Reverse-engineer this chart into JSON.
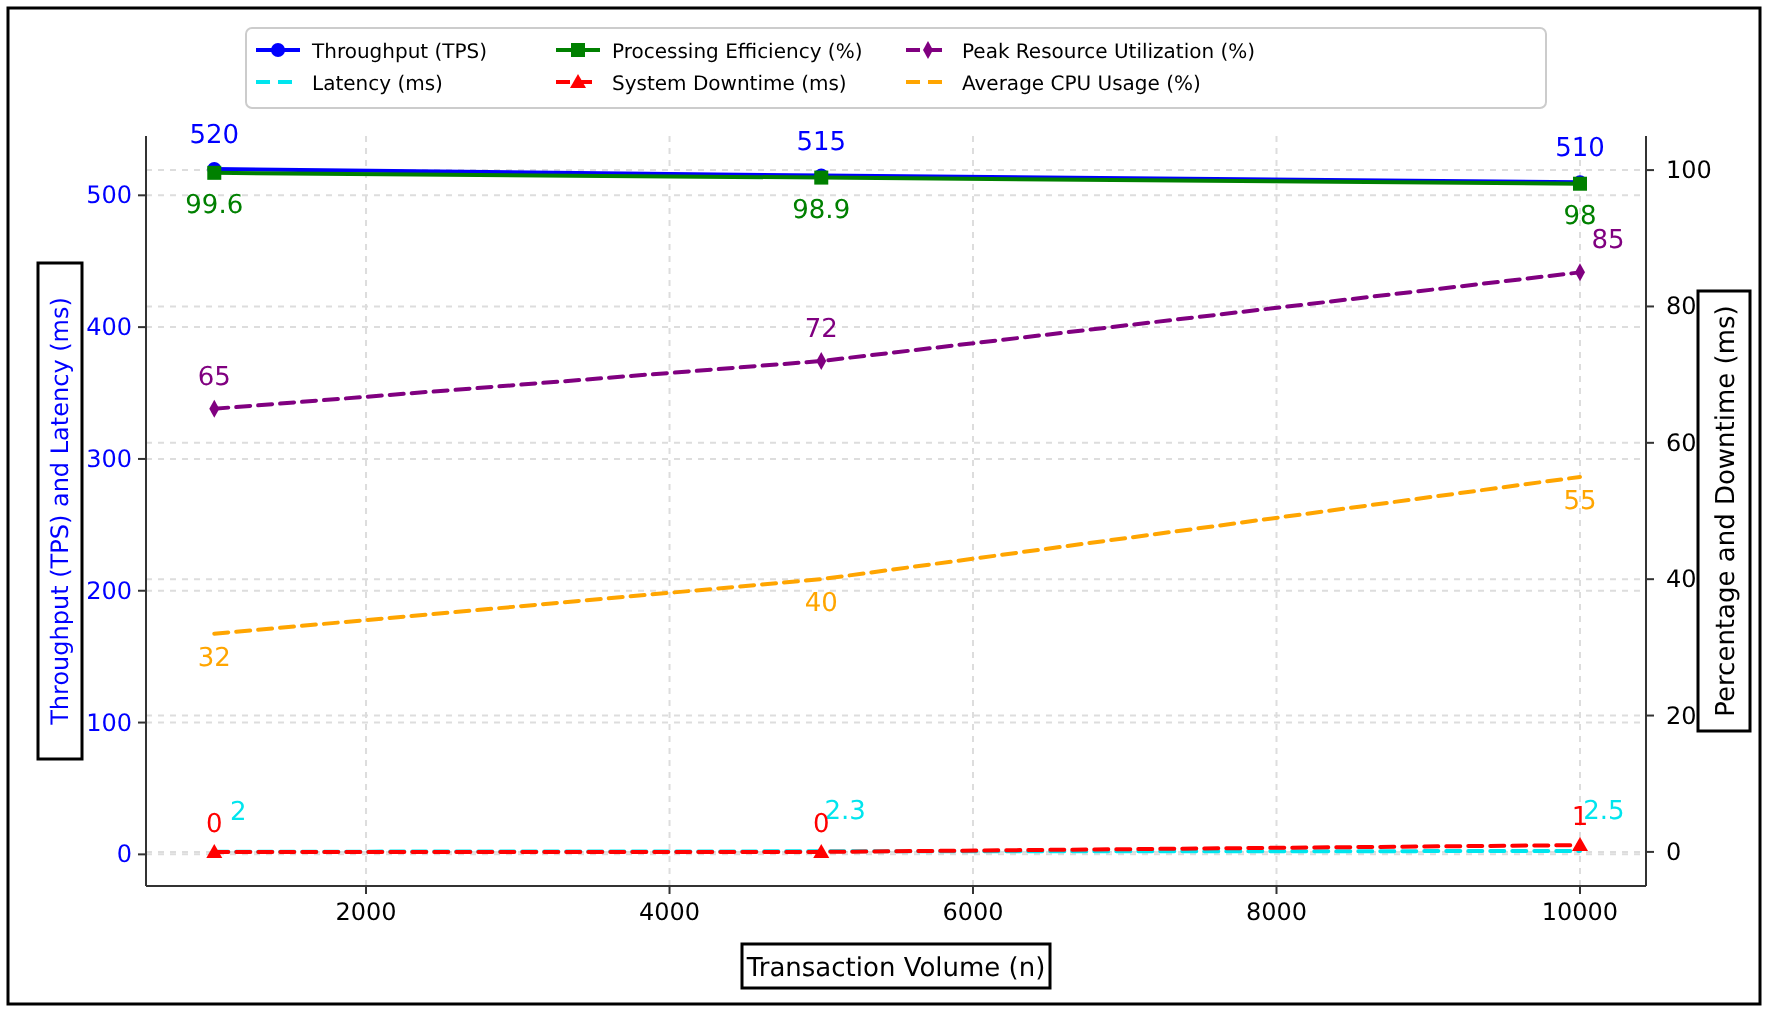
{
  "chart_data": {
    "type": "line",
    "xlabel": "Transaction Volume (n)",
    "ylabel": "Throughput (TPS) and Latency (ms)",
    "y2label": "Percentage and Downtime (ms)",
    "x": [
      1000,
      5000,
      10000
    ],
    "xlim": [
      550,
      10435
    ],
    "xticks": [
      2000,
      4000,
      6000,
      8000,
      10000
    ],
    "ylim": [
      -24,
      545
    ],
    "yticks": [
      0,
      100,
      200,
      300,
      400,
      500
    ],
    "y2lim": [
      -5,
      105
    ],
    "y2ticks": [
      0,
      20,
      40,
      60,
      80,
      100
    ],
    "grid": true,
    "legend": "top",
    "data_labels": true,
    "series": [
      {
        "name": "Throughput (TPS)",
        "color": "#0000ff",
        "values": [
          520,
          515,
          510
        ],
        "marker": "circle",
        "line_style": "solid"
      },
      {
        "name": "Latency (ms)",
        "color": "#00e5ee",
        "values": [
          2,
          2.3,
          2.5
        ],
        "marker": "none",
        "line_style": "dashed"
      },
      {
        "name": "Processing Efficiency (%)",
        "color": "#008000",
        "values": [
          99.6,
          98.9,
          98
        ],
        "marker": "square",
        "line_style": "solid",
        "axis": "y2"
      },
      {
        "name": "System Downtime (ms)",
        "color": "#ff0000",
        "values": [
          0,
          0,
          1
        ],
        "marker": "triangle",
        "line_style": "dashed",
        "axis": "y2"
      },
      {
        "name": "Peak Resource Utilization (%)",
        "color": "#800080",
        "values": [
          65,
          72,
          85
        ],
        "marker": "diamond",
        "line_style": "dashed",
        "axis": "y2"
      },
      {
        "name": "Average CPU Usage (%)",
        "color": "#ffa500",
        "values": [
          32,
          40,
          55
        ],
        "marker": "none",
        "line_style": "dashed",
        "axis": "y2"
      }
    ]
  }
}
